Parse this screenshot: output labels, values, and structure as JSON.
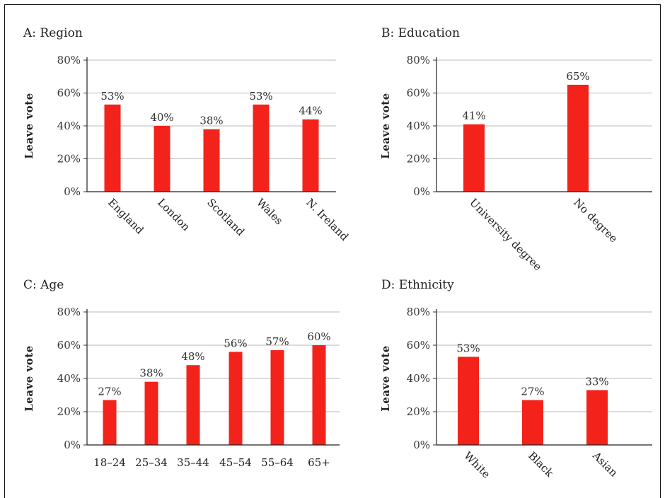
{
  "chart_data": [
    {
      "type": "bar",
      "title": "A: Region",
      "ylabel": "Leave vote",
      "ylim": [
        0,
        80
      ],
      "yticks": [
        "0%",
        "20%",
        "40%",
        "60%",
        "80%"
      ],
      "grid": true,
      "categories": [
        "England",
        "London",
        "Scotland",
        "Wales",
        "N. Ireland"
      ],
      "values": [
        53,
        40,
        38,
        53,
        44
      ],
      "value_labels": [
        "53%",
        "40%",
        "38%",
        "53%",
        "44%"
      ],
      "bar_color": "#F3231B",
      "category_label_rotation": "rotated 45°"
    },
    {
      "type": "bar",
      "title": "B: Education",
      "ylabel": "Leave vote",
      "ylim": [
        0,
        80
      ],
      "yticks": [
        "0%",
        "20%",
        "40%",
        "60%",
        "80%"
      ],
      "grid": true,
      "categories": [
        "University degree",
        "No degree"
      ],
      "values": [
        41,
        65
      ],
      "value_labels": [
        "41%",
        "65%"
      ],
      "bar_color": "#F3231B",
      "category_label_rotation": "rotated 45°"
    },
    {
      "type": "bar",
      "title": "C: Age",
      "ylabel": "Leave vote",
      "ylim": [
        0,
        80
      ],
      "yticks": [
        "0%",
        "20%",
        "40%",
        "60%",
        "80%"
      ],
      "grid": true,
      "categories": [
        "18–24",
        "25–34",
        "35–44",
        "45–54",
        "55–64",
        "65+"
      ],
      "values": [
        27,
        38,
        48,
        56,
        57,
        60
      ],
      "value_labels": [
        "27%",
        "38%",
        "48%",
        "56%",
        "57%",
        "60%"
      ],
      "bar_color": "#F3231B",
      "category_label_rotation": "horizontal"
    },
    {
      "type": "bar",
      "title": "D: Ethnicity",
      "ylabel": "Leave vote",
      "ylim": [
        0,
        80
      ],
      "yticks": [
        "0%",
        "20%",
        "40%",
        "60%",
        "80%"
      ],
      "grid": true,
      "categories": [
        "White",
        "Black",
        "Asian"
      ],
      "values": [
        53,
        27,
        33
      ],
      "value_labels": [
        "53%",
        "27%",
        "33%"
      ],
      "bar_color": "#F3231B",
      "category_label_rotation": "rotated 45°"
    }
  ]
}
